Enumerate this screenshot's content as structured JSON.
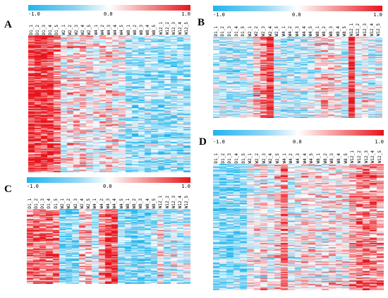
{
  "colorbar": {
    "min": "-1.0",
    "mid": "0.0",
    "max": "1.0"
  },
  "columns": [
    "D1_1",
    "D1_2",
    "D1_3",
    "D1_4",
    "D1_5",
    "W2_1",
    "W2_2",
    "W2_3",
    "W2_4",
    "W2_5",
    "W4_1",
    "W4_2",
    "W4_3",
    "W4_4",
    "W4_5",
    "W8_1",
    "W8_2",
    "W8_3",
    "W8_4",
    "W8_5",
    "W12_1",
    "W12_2",
    "W12_3",
    "W12_4",
    "W12_5"
  ],
  "panels": [
    {
      "id": "A",
      "label": "A",
      "rows": 150,
      "col_mean": [
        0.85,
        0.85,
        0.9,
        0.9,
        0.55,
        -0.05,
        0.15,
        0.1,
        0.2,
        0.05,
        -0.05,
        0.1,
        0.15,
        0.05,
        -0.1,
        -0.45,
        -0.5,
        -0.45,
        -0.35,
        -0.4,
        -0.5,
        -0.45,
        -0.45,
        -0.4,
        -0.45
      ]
    },
    {
      "id": "B",
      "label": "B",
      "rows": 110,
      "col_mean": [
        -0.35,
        -0.3,
        -0.3,
        -0.3,
        -0.25,
        -0.2,
        0.2,
        0.55,
        0.9,
        -0.25,
        -0.35,
        -0.35,
        -0.3,
        -0.3,
        -0.25,
        0.0,
        0.2,
        0.15,
        0.0,
        -0.2,
        0.9,
        -0.1,
        0.0,
        -0.15,
        -0.15
      ]
    },
    {
      "id": "C",
      "label": "C",
      "rows": 90,
      "col_mean": [
        0.6,
        0.65,
        0.6,
        0.55,
        0.45,
        -0.5,
        -0.55,
        -0.5,
        0.25,
        0.25,
        -0.25,
        0.5,
        0.8,
        0.85,
        -0.45,
        -0.55,
        -0.55,
        -0.6,
        -0.6,
        -0.4,
        0.05,
        -0.4,
        -0.2,
        -0.25,
        -0.2
      ]
    },
    {
      "id": "D",
      "label": "D",
      "rows": 160,
      "col_mean": [
        -0.55,
        -0.55,
        -0.55,
        -0.5,
        -0.5,
        -0.1,
        0.0,
        0.1,
        -0.1,
        0.2,
        0.55,
        -0.1,
        -0.05,
        0.1,
        0.15,
        0.0,
        0.1,
        0.15,
        0.05,
        0.1,
        0.3,
        0.55,
        0.55,
        0.5,
        0.35
      ]
    }
  ]
}
